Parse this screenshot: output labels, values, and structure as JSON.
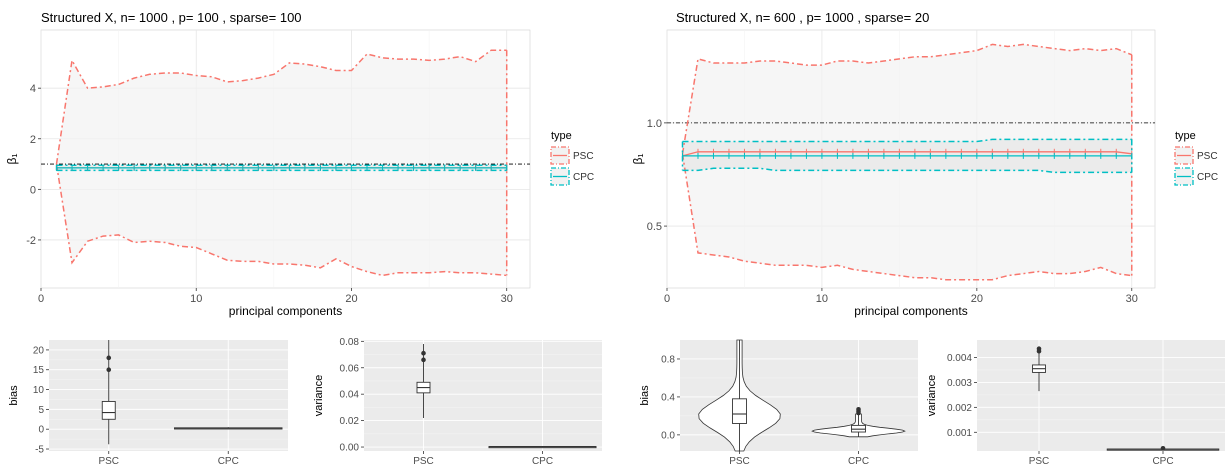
{
  "colors": {
    "psc": "#F8766D",
    "cpc": "#00BFC4",
    "panel_white": "#ffffff",
    "panel_grey": "#EBEBEB",
    "fill": "#F2F2F2",
    "ref": "#000000"
  },
  "chart_data": [
    {
      "type": "line",
      "title": "Structured X, n= 1000 , p= 100 , sparse= 100",
      "xlabel": "principal components",
      "ylabel": "β₁",
      "xlim": [
        0,
        31.5
      ],
      "ylim": [
        -3.9,
        6.3
      ],
      "xticks": [
        0,
        10,
        20,
        30
      ],
      "yticks": [
        -2,
        0,
        2,
        4
      ],
      "ytick_labels": [
        "-2",
        "0",
        "2",
        "4"
      ],
      "reference_line": 1,
      "legend": {
        "title": "type",
        "entries": [
          "PSC",
          "CPC"
        ],
        "position": "right"
      },
      "x": [
        1,
        2,
        3,
        4,
        5,
        6,
        7,
        8,
        9,
        10,
        11,
        12,
        13,
        14,
        15,
        16,
        17,
        18,
        19,
        20,
        21,
        22,
        23,
        24,
        25,
        26,
        27,
        28,
        29,
        30
      ],
      "psc_upper": [
        1,
        5.1,
        4.0,
        4.05,
        4.15,
        4.4,
        4.55,
        4.6,
        4.6,
        4.5,
        4.45,
        4.25,
        4.3,
        4.4,
        4.55,
        5.0,
        4.95,
        4.85,
        4.7,
        4.7,
        5.35,
        5.2,
        5.15,
        5.15,
        5.1,
        5.15,
        5.25,
        5.05,
        5.5,
        5.5
      ],
      "psc_lower": [
        1,
        -2.9,
        -2.05,
        -1.85,
        -1.8,
        -2.1,
        -2.05,
        -2.1,
        -2.25,
        -2.3,
        -2.55,
        -2.8,
        -2.85,
        -2.85,
        -2.95,
        -2.95,
        -3.0,
        -3.1,
        -2.75,
        -3.05,
        -3.25,
        -3.4,
        -3.3,
        -3.3,
        -3.3,
        -3.25,
        -3.3,
        -3.3,
        -3.35,
        -3.4
      ],
      "psc_mean": [
        0.85,
        0.85,
        0.85,
        0.85,
        0.85,
        0.85,
        0.85,
        0.85,
        0.85,
        0.85,
        0.85,
        0.85,
        0.85,
        0.85,
        0.85,
        0.85,
        0.85,
        0.85,
        0.85,
        0.85,
        0.85,
        0.85,
        0.85,
        0.85,
        0.85,
        0.85,
        0.85,
        0.85,
        0.85,
        0.85
      ],
      "cpc_upper": [
        0.95,
        0.95,
        0.95,
        0.95,
        0.95,
        0.95,
        0.95,
        0.95,
        0.95,
        0.95,
        0.95,
        0.95,
        0.95,
        0.95,
        0.95,
        0.95,
        0.95,
        0.95,
        0.95,
        0.95,
        0.95,
        0.95,
        0.95,
        0.95,
        0.95,
        0.95,
        0.95,
        0.95,
        0.95,
        0.95
      ],
      "cpc_lower": [
        0.75,
        0.75,
        0.75,
        0.75,
        0.75,
        0.75,
        0.75,
        0.75,
        0.75,
        0.75,
        0.75,
        0.75,
        0.75,
        0.75,
        0.75,
        0.75,
        0.75,
        0.75,
        0.75,
        0.75,
        0.75,
        0.75,
        0.75,
        0.75,
        0.75,
        0.75,
        0.75,
        0.75,
        0.75,
        0.75
      ],
      "cpc_mean": [
        0.85,
        0.85,
        0.85,
        0.85,
        0.85,
        0.85,
        0.85,
        0.85,
        0.85,
        0.85,
        0.85,
        0.85,
        0.85,
        0.85,
        0.85,
        0.85,
        0.85,
        0.85,
        0.85,
        0.85,
        0.85,
        0.85,
        0.85,
        0.85,
        0.85,
        0.85,
        0.85,
        0.85,
        0.85,
        0.85
      ]
    },
    {
      "type": "line",
      "title": "Structured X, n= 600 , p= 1000 , sparse= 20",
      "xlabel": "principal components",
      "ylabel": "β₁",
      "xlim": [
        0,
        31.5
      ],
      "ylim": [
        0.2,
        1.45
      ],
      "xticks": [
        0,
        10,
        20,
        30
      ],
      "yticks": [
        0.5,
        1.0
      ],
      "ytick_labels": [
        "0.5",
        "1.0"
      ],
      "reference_line": 1,
      "legend": {
        "title": "type",
        "entries": [
          "PSC",
          "CPC"
        ],
        "position": "right"
      },
      "x": [
        1,
        2,
        3,
        4,
        5,
        6,
        7,
        8,
        9,
        10,
        11,
        12,
        13,
        14,
        15,
        16,
        17,
        18,
        19,
        20,
        21,
        22,
        23,
        24,
        25,
        26,
        27,
        28,
        29,
        30
      ],
      "psc_upper": [
        0.85,
        1.31,
        1.29,
        1.29,
        1.29,
        1.3,
        1.3,
        1.29,
        1.28,
        1.28,
        1.3,
        1.3,
        1.29,
        1.3,
        1.31,
        1.32,
        1.32,
        1.33,
        1.34,
        1.35,
        1.38,
        1.37,
        1.38,
        1.37,
        1.36,
        1.35,
        1.36,
        1.35,
        1.36,
        1.33
      ],
      "psc_lower": [
        0.85,
        0.37,
        0.36,
        0.35,
        0.33,
        0.32,
        0.31,
        0.31,
        0.31,
        0.3,
        0.31,
        0.29,
        0.28,
        0.27,
        0.26,
        0.25,
        0.25,
        0.24,
        0.24,
        0.24,
        0.24,
        0.26,
        0.27,
        0.28,
        0.27,
        0.27,
        0.28,
        0.3,
        0.27,
        0.26
      ],
      "psc_mean": [
        0.84,
        0.86,
        0.86,
        0.86,
        0.86,
        0.86,
        0.86,
        0.86,
        0.86,
        0.86,
        0.86,
        0.86,
        0.86,
        0.86,
        0.86,
        0.86,
        0.86,
        0.86,
        0.86,
        0.86,
        0.86,
        0.86,
        0.86,
        0.86,
        0.86,
        0.86,
        0.86,
        0.86,
        0.86,
        0.85
      ],
      "cpc_upper": [
        0.91,
        0.91,
        0.91,
        0.91,
        0.91,
        0.91,
        0.91,
        0.91,
        0.91,
        0.91,
        0.91,
        0.91,
        0.91,
        0.91,
        0.91,
        0.91,
        0.91,
        0.91,
        0.91,
        0.91,
        0.92,
        0.92,
        0.92,
        0.92,
        0.92,
        0.92,
        0.92,
        0.92,
        0.92,
        0.92
      ],
      "cpc_lower": [
        0.77,
        0.77,
        0.78,
        0.78,
        0.78,
        0.78,
        0.77,
        0.77,
        0.77,
        0.77,
        0.77,
        0.77,
        0.77,
        0.77,
        0.77,
        0.77,
        0.77,
        0.77,
        0.77,
        0.77,
        0.77,
        0.77,
        0.77,
        0.77,
        0.76,
        0.76,
        0.76,
        0.76,
        0.76,
        0.76
      ],
      "cpc_mean": [
        0.84,
        0.84,
        0.84,
        0.84,
        0.84,
        0.84,
        0.84,
        0.84,
        0.84,
        0.84,
        0.84,
        0.84,
        0.84,
        0.84,
        0.84,
        0.84,
        0.84,
        0.84,
        0.84,
        0.84,
        0.84,
        0.84,
        0.84,
        0.84,
        0.84,
        0.84,
        0.84,
        0.84,
        0.84,
        0.84
      ]
    },
    {
      "type": "box",
      "title": "",
      "ylabel": "bias",
      "ylim": [
        -5.5,
        22.5
      ],
      "yticks": [
        -5,
        0,
        5,
        10,
        15,
        20
      ],
      "ytick_labels": [
        "-5",
        "0",
        "5",
        "10",
        "15",
        "20"
      ],
      "categories": [
        "PSC",
        "CPC"
      ],
      "violin": false,
      "boxes": [
        {
          "min": -3.8,
          "q1": 2.5,
          "median": 4.2,
          "q3": 7.0,
          "max": 22.5,
          "outliers": [
            18.0,
            15.0
          ]
        },
        {
          "min": 0.1,
          "q1": 0.25,
          "median": 0.3,
          "q3": 0.35,
          "max": 0.5,
          "outliers": []
        }
      ]
    },
    {
      "type": "box",
      "title": "",
      "ylabel": "variance",
      "ylim": [
        -0.003,
        0.081
      ],
      "yticks": [
        0.0,
        0.02,
        0.04,
        0.06,
        0.08
      ],
      "ytick_labels": [
        "0.00",
        "0.02",
        "0.04",
        "0.06",
        "0.08"
      ],
      "categories": [
        "PSC",
        "CPC"
      ],
      "violin": false,
      "boxes": [
        {
          "min": 0.022,
          "q1": 0.041,
          "median": 0.045,
          "q3": 0.049,
          "max": 0.078,
          "outliers": [
            0.071,
            0.066
          ]
        },
        {
          "min": 0.0,
          "q1": 0.0002,
          "median": 0.0003,
          "q3": 0.0004,
          "max": 0.0008,
          "outliers": []
        }
      ]
    },
    {
      "type": "violin",
      "title": "",
      "ylabel": "bias",
      "ylim": [
        -0.17,
        1.0
      ],
      "yticks": [
        0.0,
        0.4,
        0.8
      ],
      "ytick_labels": [
        "0.0",
        "0.4",
        "0.8"
      ],
      "categories": [
        "PSC",
        "CPC"
      ],
      "violin": true,
      "boxes": [
        {
          "min": -0.17,
          "q1": 0.12,
          "median": 0.22,
          "q3": 0.38,
          "max": 1.0,
          "outliers": [],
          "vmax_width": 0.8,
          "peak": 0.2
        },
        {
          "min": -0.02,
          "q1": 0.03,
          "median": 0.06,
          "q3": 0.1,
          "max": 0.22,
          "outliers": [
            0.27,
            0.25,
            0.23
          ],
          "vmax_width": 0.9,
          "peak": 0.04
        }
      ]
    },
    {
      "type": "box",
      "title": "",
      "ylabel": "variance",
      "ylim": [
        0.00025,
        0.0047
      ],
      "yticks": [
        0.001,
        0.002,
        0.003,
        0.004
      ],
      "ytick_labels": [
        "0.001",
        "0.002",
        "0.003",
        "0.004"
      ],
      "categories": [
        "PSC",
        "CPC"
      ],
      "violin": false,
      "boxes": [
        {
          "min": 0.00265,
          "q1": 0.0034,
          "median": 0.00355,
          "q3": 0.0037,
          "max": 0.0044,
          "outliers": [
            0.00435,
            0.00425
          ]
        },
        {
          "min": 0.0003,
          "q1": 0.00031,
          "median": 0.00032,
          "q3": 0.00033,
          "max": 0.00037,
          "outliers": [
            0.00036
          ]
        }
      ]
    }
  ]
}
